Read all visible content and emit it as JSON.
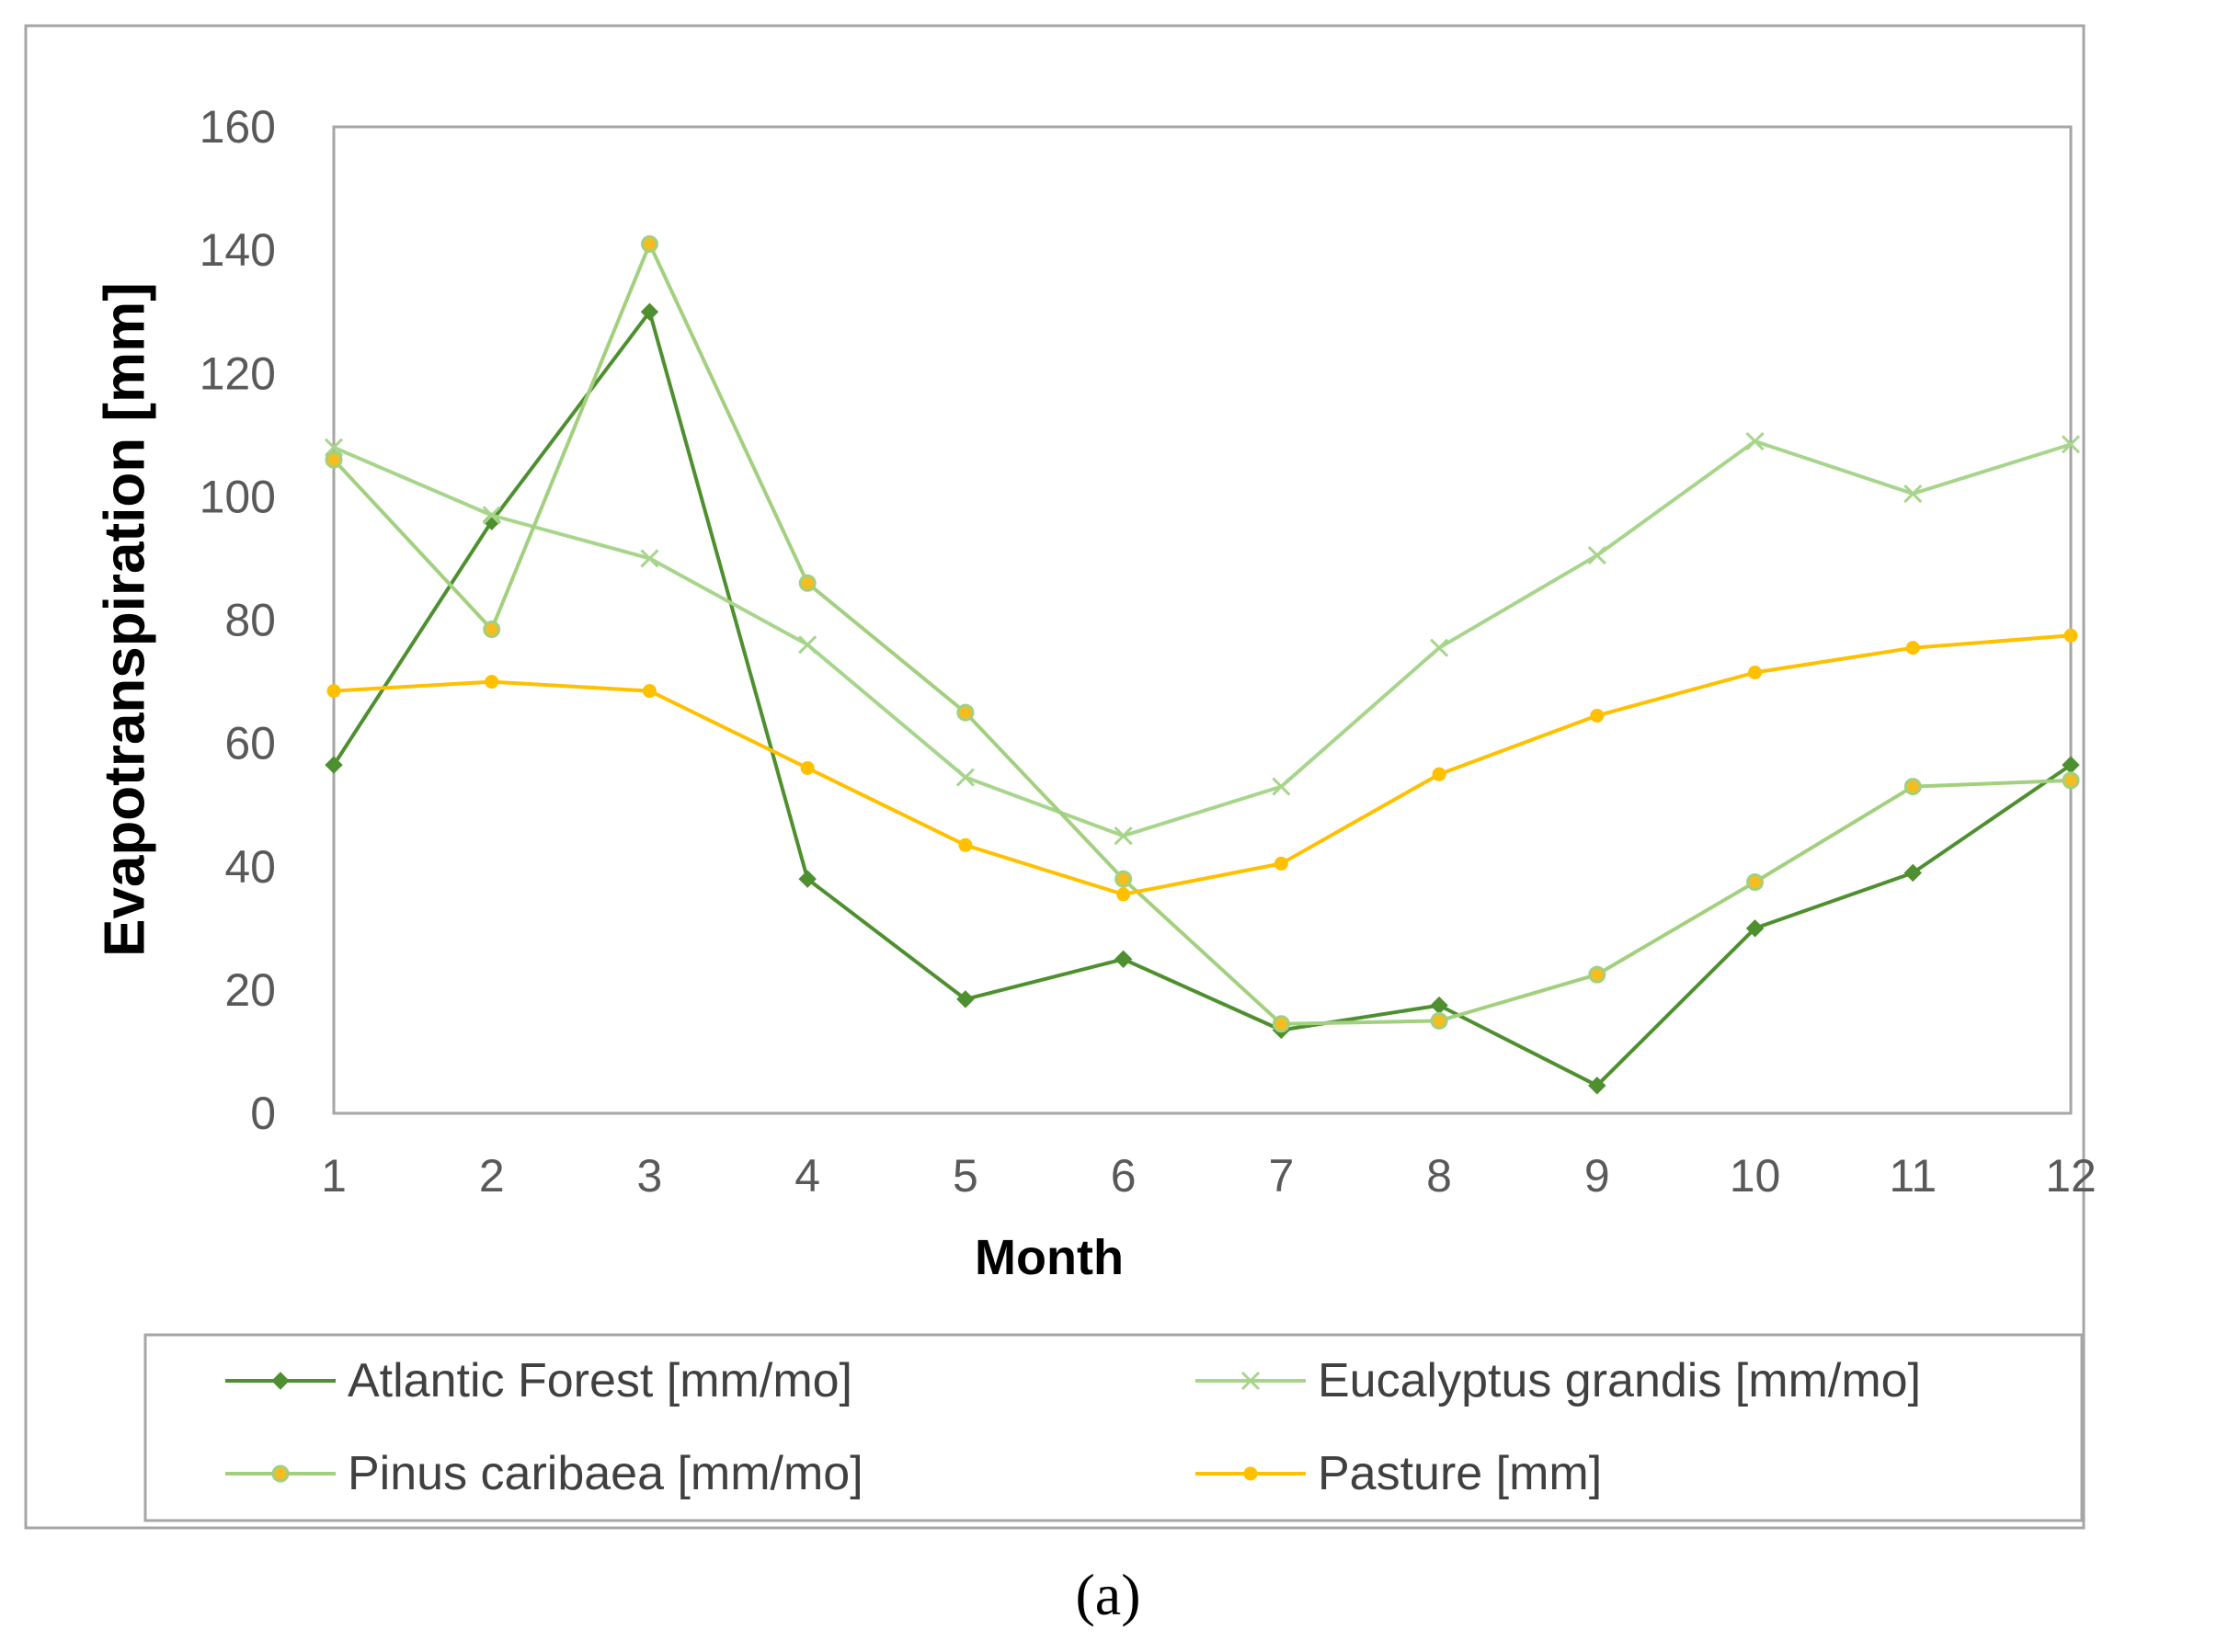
{
  "chart_data": {
    "type": "line",
    "title": "",
    "xlabel": "Month",
    "ylabel": "Evapotranspiration [mm]",
    "x": [
      1,
      2,
      3,
      4,
      5,
      6,
      7,
      8,
      9,
      10,
      11,
      12
    ],
    "ylim": [
      0,
      160
    ],
    "yticks": [
      0,
      20,
      40,
      60,
      80,
      100,
      120,
      140,
      160
    ],
    "grid": false,
    "legend_position": "bottom",
    "series": [
      {
        "name": "Atlantic Forest [mm/mo]",
        "color": "#4e8f2f",
        "marker": "diamond",
        "values": [
          56.5,
          96,
          130,
          38,
          18.5,
          25,
          13.5,
          17.5,
          4.5,
          30,
          39,
          56.5
        ]
      },
      {
        "name": "Eucalyptus grandis [mm/mo]",
        "color": "#a8d58c",
        "marker": "x",
        "values": [
          108,
          97,
          90,
          76,
          54.5,
          45,
          53,
          75.5,
          90.5,
          109,
          100.5,
          108.5
        ]
      },
      {
        "name": "Pinus caribaea [mm/mo]",
        "color": "#a3d07f",
        "marker": "circle",
        "marker_fill": "#f5bd1f",
        "values": [
          106,
          78.5,
          141,
          86,
          65,
          38,
          14.5,
          15,
          22.5,
          37.5,
          53,
          54
        ]
      },
      {
        "name": "Pasture [mm]",
        "color": "#ffc000",
        "marker": "dot",
        "values": [
          68.5,
          70,
          68.5,
          56,
          43.5,
          35.5,
          40.5,
          55,
          64.5,
          71.5,
          75.5,
          77.5
        ]
      }
    ]
  },
  "caption": "(a)"
}
